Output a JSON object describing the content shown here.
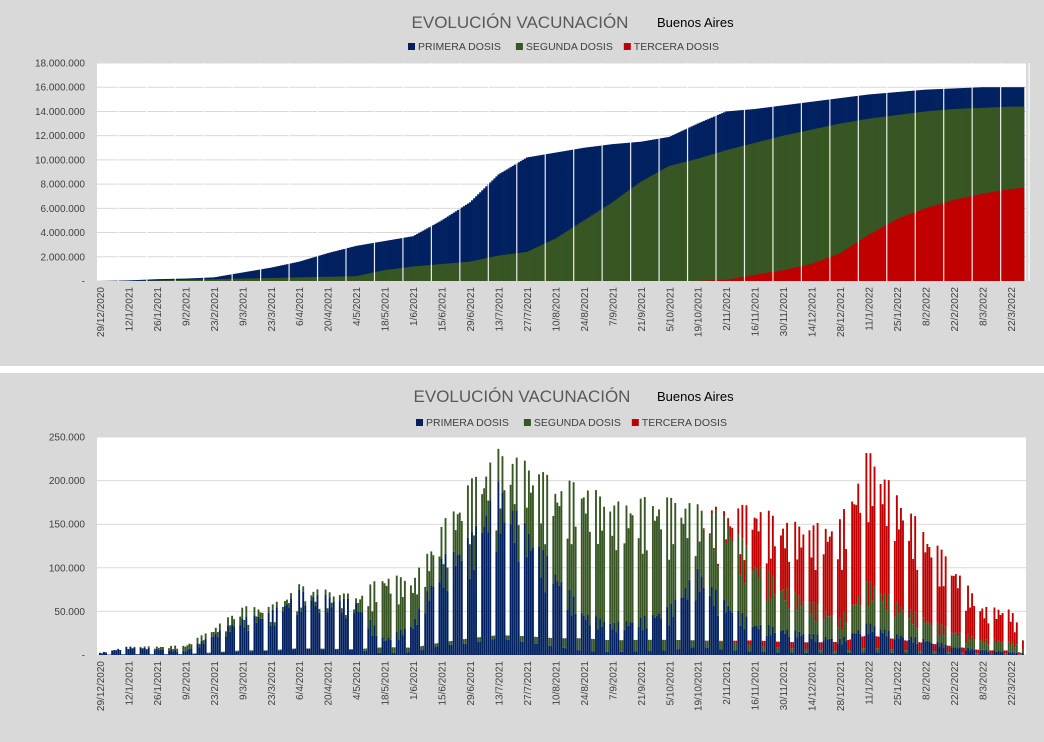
{
  "chart_data": [
    {
      "type": "area",
      "title": "EVOLUCIÓN VACUNACIÓN",
      "subtitle": "Buenos Aires",
      "x_tick_labels": [
        "29/12/2020",
        "12/1/2021",
        "26/1/2021",
        "9/2/2021",
        "23/2/2021",
        "9/3/2021",
        "23/3/2021",
        "6/4/2021",
        "20/4/2021",
        "4/5/2021",
        "18/5/2021",
        "1/6/2021",
        "15/6/2021",
        "29/6/2021",
        "13/7/2021",
        "27/7/2021",
        "10/8/2021",
        "24/8/2021",
        "7/9/2021",
        "21/9/2021",
        "5/10/2021",
        "19/10/2021",
        "2/11/2021",
        "16/11/2021",
        "30/11/2021",
        "14/12/2021",
        "28/12/2021",
        "11/1/2022",
        "25/1/2022",
        "8/2/2022",
        "22/2/2022",
        "8/3/2022",
        "22/3/2022"
      ],
      "y_tick_labels": [
        "-",
        "2.000.000",
        "4.000.000",
        "6.000.000",
        "8.000.000",
        "10.000.000",
        "12.000.000",
        "14.000.000",
        "16.000.000",
        "18.000.000"
      ],
      "ylim": [
        0,
        18000000
      ],
      "grid": true,
      "legend_position": "top",
      "x_dates": [
        "2020-12-29",
        "2021-01-12",
        "2021-01-26",
        "2021-02-09",
        "2021-02-23",
        "2021-03-09",
        "2021-03-23",
        "2021-04-06",
        "2021-04-20",
        "2021-05-04",
        "2021-05-18",
        "2021-06-01",
        "2021-06-15",
        "2021-06-29",
        "2021-07-13",
        "2021-07-27",
        "2021-08-10",
        "2021-08-24",
        "2021-09-07",
        "2021-09-21",
        "2021-10-05",
        "2021-10-19",
        "2021-11-02",
        "2021-11-16",
        "2021-11-30",
        "2021-12-14",
        "2021-12-28",
        "2022-01-11",
        "2022-01-25",
        "2022-02-08",
        "2022-02-22",
        "2022-03-08",
        "2022-03-22",
        "2022-03-28"
      ],
      "series": [
        {
          "name": "PRIMERA DOSIS",
          "color": "#002060",
          "values": [
            0,
            50000,
            150000,
            200000,
            300000,
            700000,
            1100000,
            1600000,
            2300000,
            2900000,
            3300000,
            3700000,
            5000000,
            6500000,
            8800000,
            10200000,
            10600000,
            11000000,
            11300000,
            11500000,
            11900000,
            13000000,
            14000000,
            14200000,
            14500000,
            14800000,
            15100000,
            15400000,
            15600000,
            15800000,
            15900000,
            16000000,
            16000000,
            16000000
          ]
        },
        {
          "name": "SEGUNDA DOSIS",
          "color": "#375623",
          "values": [
            0,
            0,
            50000,
            100000,
            150000,
            200000,
            250000,
            300000,
            350000,
            400000,
            900000,
            1200000,
            1400000,
            1600000,
            2100000,
            2400000,
            3500000,
            5000000,
            6500000,
            8200000,
            9500000,
            10100000,
            10800000,
            11400000,
            12000000,
            12500000,
            13000000,
            13400000,
            13700000,
            14000000,
            14200000,
            14300000,
            14400000,
            14400000
          ]
        },
        {
          "name": "TERCERA DOSIS",
          "color": "#c00000",
          "values": [
            0,
            0,
            0,
            0,
            0,
            0,
            0,
            0,
            0,
            0,
            0,
            0,
            0,
            0,
            0,
            0,
            0,
            0,
            0,
            0,
            0,
            0,
            100000,
            500000,
            900000,
            1400000,
            2300000,
            3800000,
            5100000,
            6000000,
            6700000,
            7200000,
            7600000,
            7700000
          ]
        }
      ]
    },
    {
      "type": "bar",
      "title": "EVOLUCIÓN VACUNACIÓN",
      "subtitle": "Buenos Aires",
      "x_tick_labels": [
        "29/12/2020",
        "12/1/2021",
        "26/1/2021",
        "9/2/2021",
        "23/2/2021",
        "9/3/2021",
        "23/3/2021",
        "6/4/2021",
        "20/4/2021",
        "4/5/2021",
        "18/5/2021",
        "1/6/2021",
        "15/6/2021",
        "29/6/2021",
        "13/7/2021",
        "27/7/2021",
        "10/8/2021",
        "24/8/2021",
        "7/9/2021",
        "21/9/2021",
        "5/10/2021",
        "19/10/2021",
        "2/11/2021",
        "16/11/2021",
        "30/11/2021",
        "14/12/2021",
        "28/12/2021",
        "11/1/2022",
        "25/1/2022",
        "8/2/2022",
        "22/2/2022",
        "8/3/2022",
        "22/3/2022"
      ],
      "y_tick_labels": [
        "-",
        "50.000",
        "100.000",
        "150.000",
        "200.000",
        "250.000"
      ],
      "ylim": [
        0,
        250000
      ],
      "grid": true,
      "legend_position": "top",
      "stacked": true,
      "x_dates": [
        "2020-12-29",
        "2021-01-12",
        "2021-01-26",
        "2021-02-09",
        "2021-02-23",
        "2021-03-09",
        "2021-03-23",
        "2021-04-06",
        "2021-04-20",
        "2021-05-04",
        "2021-05-18",
        "2021-06-01",
        "2021-06-15",
        "2021-06-29",
        "2021-07-13",
        "2021-07-27",
        "2021-08-10",
        "2021-08-24",
        "2021-09-07",
        "2021-09-21",
        "2021-10-05",
        "2021-10-19",
        "2021-11-02",
        "2021-11-16",
        "2021-11-30",
        "2021-12-14",
        "2021-12-28",
        "2022-01-11",
        "2022-01-25",
        "2022-02-08",
        "2022-02-22",
        "2022-03-08",
        "2022-03-22",
        "2022-03-28"
      ],
      "series": [
        {
          "name": "PRIMERA DOSIS",
          "color": "#002060",
          "values": [
            2000,
            8000,
            6000,
            4000,
            20000,
            35000,
            40000,
            60000,
            55000,
            50000,
            15000,
            30000,
            90000,
            110000,
            160000,
            120000,
            80000,
            40000,
            30000,
            35000,
            45000,
            80000,
            50000,
            30000,
            25000,
            20000,
            15000,
            30000,
            20000,
            15000,
            8000,
            5000,
            3000,
            2000
          ]
        },
        {
          "name": "SEGUNDA DOSIS",
          "color": "#375623",
          "values": [
            0,
            0,
            2000,
            5000,
            5000,
            10000,
            5000,
            5000,
            5000,
            5000,
            60000,
            40000,
            30000,
            50000,
            30000,
            60000,
            80000,
            120000,
            110000,
            110000,
            100000,
            60000,
            80000,
            60000,
            40000,
            30000,
            20000,
            40000,
            30000,
            20000,
            15000,
            10000,
            10000,
            5000
          ]
        },
        {
          "name": "TERCERA DOSIS",
          "color": "#c00000",
          "values": [
            0,
            0,
            0,
            0,
            0,
            0,
            0,
            0,
            0,
            0,
            0,
            0,
            0,
            0,
            0,
            0,
            0,
            0,
            0,
            0,
            0,
            0,
            5000,
            50000,
            60000,
            70000,
            90000,
            120000,
            100000,
            80000,
            60000,
            30000,
            30000,
            10000
          ]
        }
      ]
    }
  ]
}
